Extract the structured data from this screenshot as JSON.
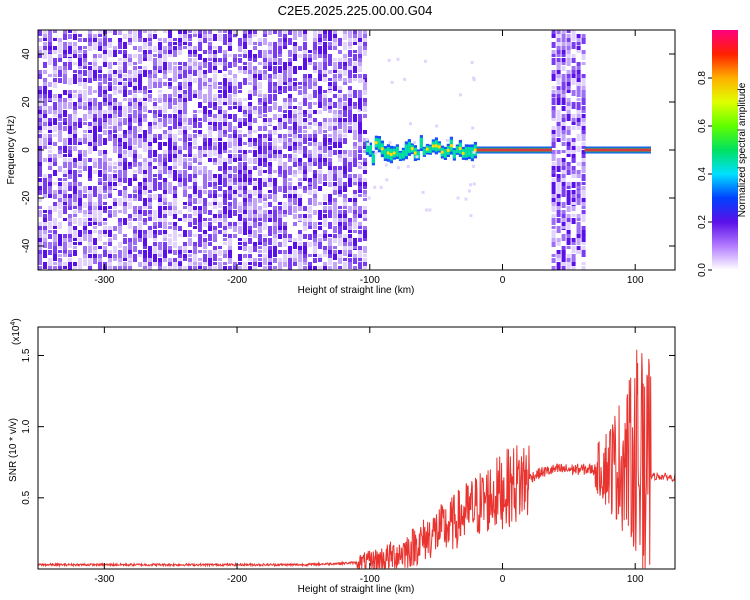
{
  "title": "C2E5.2025.225.00.00.G04",
  "colors": {
    "snr_line": "#e8332f",
    "spectral_trace": "#e8333a"
  },
  "chart_data": [
    {
      "type": "heatmap",
      "title": "C2E5.2025.225.00.00.G04",
      "xlabel": "Height of straight line (km)",
      "ylabel": "Frequency (Hz)",
      "xlim": [
        -350,
        130
      ],
      "ylim": [
        -50,
        50
      ],
      "xticks": [
        {
          "value": -300,
          "label": "-300"
        },
        {
          "value": -200,
          "label": "-200"
        },
        {
          "value": -100,
          "label": "-100"
        },
        {
          "value": 0,
          "label": "0"
        },
        {
          "value": 100,
          "label": "100"
        }
      ],
      "yticks": [
        {
          "value": -40,
          "label": "-40"
        },
        {
          "value": -20,
          "label": "-20"
        },
        {
          "value": 0,
          "label": "0"
        },
        {
          "value": 20,
          "label": "20"
        },
        {
          "value": 40,
          "label": "40"
        }
      ],
      "colorbar": {
        "label": "Normalized spectral amplitude",
        "range": [
          0,
          1
        ],
        "ticks": [
          {
            "value": 0.0,
            "label": "0.0"
          },
          {
            "value": 0.2,
            "label": "0.2"
          },
          {
            "value": 0.4,
            "label": "0.4"
          },
          {
            "value": 0.6,
            "label": "0.6"
          },
          {
            "value": 0.8,
            "label": "0.8"
          }
        ]
      },
      "regions": [
        {
          "x0": -350,
          "x1": -103,
          "kind": "broadband noise"
        },
        {
          "x0": -103,
          "x1": 37,
          "kind": "single tone near 0 Hz"
        },
        {
          "x0": 37,
          "x1": 62,
          "kind": "broadband noise"
        },
        {
          "x0": 62,
          "x1": 110,
          "kind": "single tone near 0 Hz"
        }
      ]
    },
    {
      "type": "line",
      "xlabel": "Height of straight line (km)",
      "ylabel": "SNR (10 * v/v)",
      "yscale_label": "(x10",
      "yscale_exp": "4",
      "xlim": [
        -350,
        130
      ],
      "ylim": [
        0,
        1.7
      ],
      "xticks": [
        {
          "value": -300,
          "label": "-300"
        },
        {
          "value": -200,
          "label": "-200"
        },
        {
          "value": -100,
          "label": "-100"
        },
        {
          "value": 0,
          "label": "0"
        },
        {
          "value": 100,
          "label": "100"
        }
      ],
      "yticks": [
        {
          "value": 0.5,
          "label": "0.5"
        },
        {
          "value": 1.0,
          "label": "1.0"
        },
        {
          "value": 1.5,
          "label": "1.5"
        }
      ],
      "series": [
        {
          "x": [
            -350,
            -300,
            -250,
            -200,
            -150,
            -120,
            -100,
            -90,
            -80,
            -70,
            -60,
            -50,
            -40,
            -30,
            -20,
            -10,
            0,
            10,
            20,
            30,
            40,
            50,
            60,
            70,
            80,
            90,
            100,
            105,
            108,
            110,
            115,
            120,
            130
          ],
          "y": [
            0.03,
            0.03,
            0.03,
            0.03,
            0.03,
            0.04,
            0.05,
            0.07,
            0.1,
            0.14,
            0.2,
            0.26,
            0.3,
            0.38,
            0.44,
            0.5,
            0.55,
            0.6,
            0.64,
            0.68,
            0.7,
            0.7,
            0.7,
            0.7,
            0.72,
            0.75,
            0.78,
            0.8,
            0.4,
            0.65,
            0.65,
            0.65,
            0.64
          ]
        }
      ]
    }
  ]
}
